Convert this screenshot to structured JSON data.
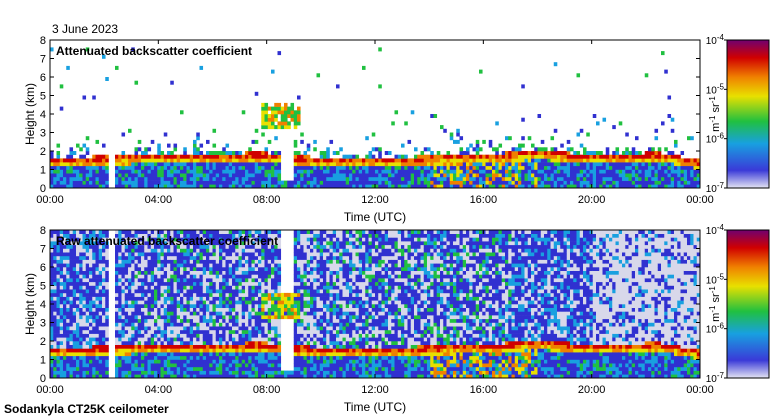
{
  "date_label": "3 June 2023",
  "footer_label": "Sodankyla CT25K ceilometer",
  "colors": {
    "colormap": [
      "#d8d8ea",
      "#3030d0",
      "#18a0e0",
      "#20c040",
      "#e8e000",
      "#f08000",
      "#d00000",
      "#700070"
    ],
    "frame": "#000000"
  },
  "chart_data": [
    {
      "type": "heatmap",
      "title": "Attenuated backscatter coefficient",
      "xlabel": "Time (UTC)",
      "ylabel": "Height (km)",
      "xlim": [
        0,
        24
      ],
      "ylim": [
        0,
        8
      ],
      "xticks": [
        "00:00",
        "04:00",
        "08:00",
        "12:00",
        "16:00",
        "20:00",
        "00:00"
      ],
      "yticks": [
        "0",
        "1",
        "2",
        "3",
        "4",
        "5",
        "6",
        "7",
        "8"
      ],
      "colorbar": {
        "label": "m-1 sr-1",
        "ticks": [
          "10-7",
          "10-6",
          "10-5",
          "10-4"
        ],
        "range": [
          -7,
          -4
        ],
        "scale": "log"
      },
      "layer_height_km": [
        [
          0,
          1.5
        ],
        [
          4,
          1.7
        ],
        [
          8,
          1.8
        ],
        [
          9,
          1.6
        ],
        [
          12,
          1.5
        ],
        [
          16,
          1.7
        ],
        [
          18,
          1.9
        ],
        [
          20,
          1.7
        ],
        [
          22.5,
          1.8
        ],
        [
          24,
          1.4
        ]
      ],
      "noise_level": "low"
    },
    {
      "type": "heatmap",
      "title": "Raw attenuated backscatter coefficient",
      "xlabel": "Time (UTC)",
      "ylabel": "Height (km)",
      "xlim": [
        0,
        24
      ],
      "ylim": [
        0,
        8
      ],
      "xticks": [
        "00:00",
        "04:00",
        "08:00",
        "12:00",
        "16:00",
        "20:00",
        "00:00"
      ],
      "yticks": [
        "0",
        "1",
        "2",
        "3",
        "4",
        "5",
        "6",
        "7",
        "8"
      ],
      "colorbar": {
        "label": "m-1 sr-1",
        "ticks": [
          "10-7",
          "10-6",
          "10-5",
          "10-4"
        ],
        "range": [
          -7,
          -4
        ],
        "scale": "log"
      },
      "layer_height_km": [
        [
          0,
          1.5
        ],
        [
          4,
          1.7
        ],
        [
          8,
          1.8
        ],
        [
          9,
          1.6
        ],
        [
          12,
          1.5
        ],
        [
          16,
          1.7
        ],
        [
          18,
          1.9
        ],
        [
          20,
          1.7
        ],
        [
          22.5,
          1.8
        ],
        [
          24,
          1.4
        ]
      ],
      "noise_level": "high"
    }
  ]
}
